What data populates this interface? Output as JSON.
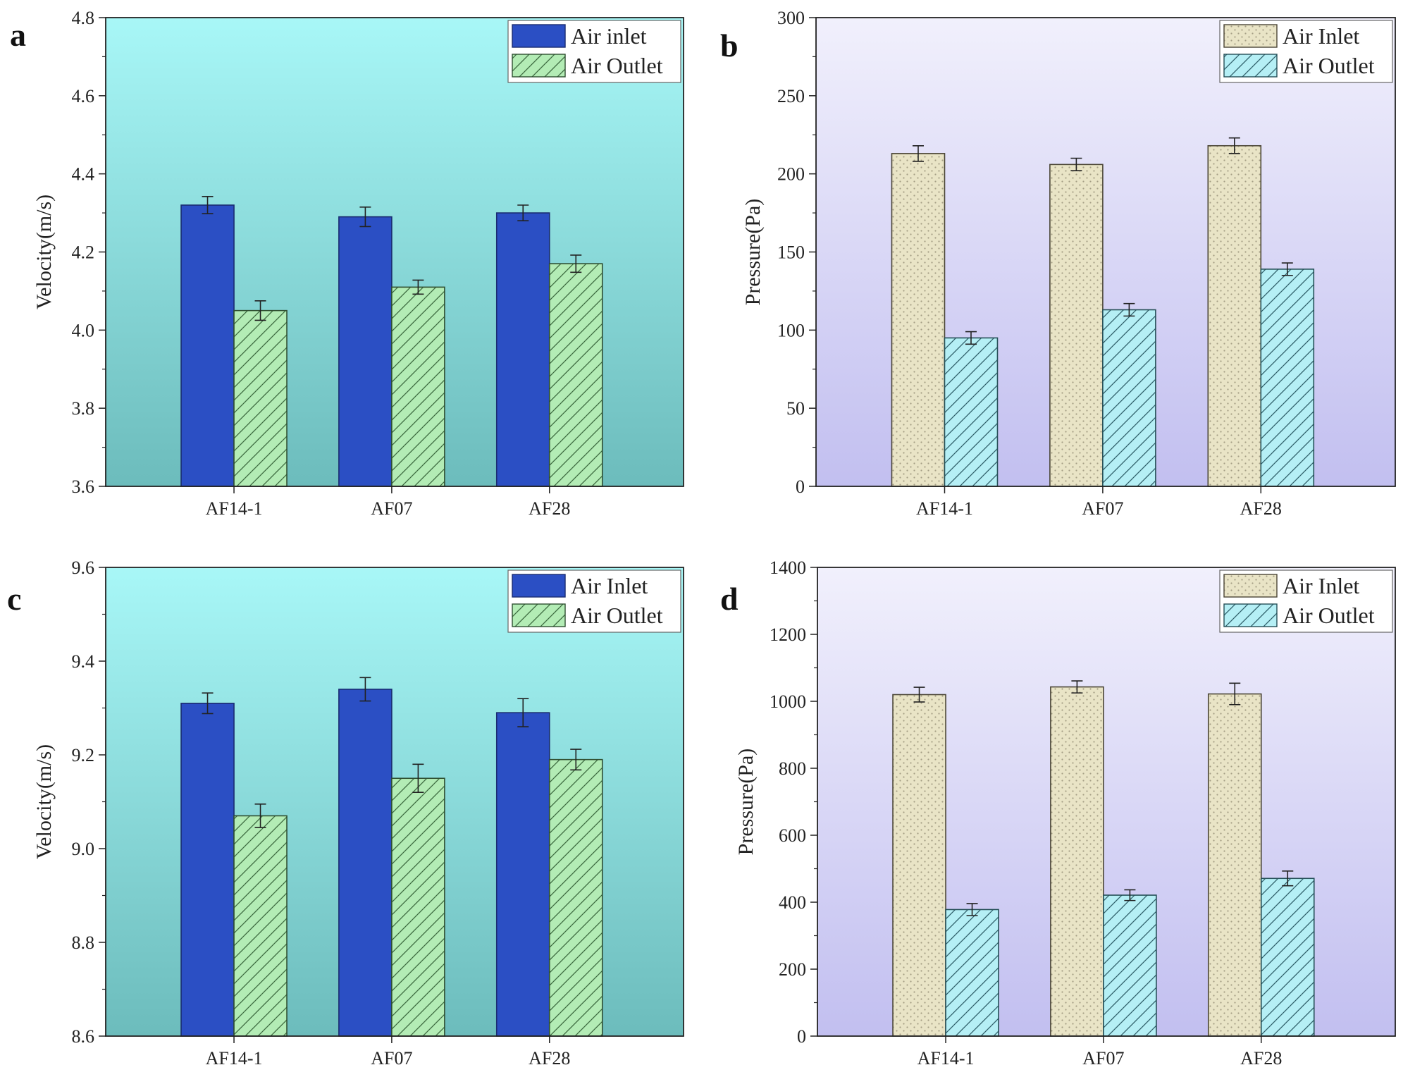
{
  "colors": {
    "velocity_bg_top": "#a8f7f7",
    "velocity_bg_bottom": "#6cbcbc",
    "pressure_bg_top": "#f1f0fc",
    "pressure_bg_bottom": "#c2bff0",
    "air_inlet_velocity": "#2b4fc4",
    "air_outlet_velocity": "#b3ecb5",
    "air_inlet_pressure": "#e9e4c6",
    "air_outlet_pressure": "#b5eff5"
  },
  "chart_data": [
    {
      "panel": "a",
      "type": "bar",
      "title": "",
      "xlabel": "",
      "ylabel": "Velocity(m/s)",
      "ylim": [
        3.6,
        4.8
      ],
      "yticks": [
        3.6,
        3.8,
        4.0,
        4.2,
        4.4,
        4.6,
        4.8
      ],
      "ytick_labels": [
        "3.6",
        "3.8",
        "4.0",
        "4.2",
        "4.4",
        "4.6",
        "4.8"
      ],
      "categories": [
        "AF14-1",
        "AF07",
        "AF28"
      ],
      "legend_position": "top-right",
      "background": "velocity",
      "series": [
        {
          "name": "Air inlet",
          "style": "inlet_velocity",
          "values": [
            4.32,
            4.29,
            4.3
          ],
          "errors": [
            0.022,
            0.025,
            0.02
          ]
        },
        {
          "name": "Air Outlet",
          "style": "outlet_velocity",
          "values": [
            4.05,
            4.11,
            4.17
          ],
          "errors": [
            0.025,
            0.018,
            0.022
          ]
        }
      ]
    },
    {
      "panel": "b",
      "type": "bar",
      "title": "",
      "xlabel": "",
      "ylabel": "Pressure(Pa)",
      "ylim": [
        0,
        300
      ],
      "yticks": [
        0,
        50,
        100,
        150,
        200,
        250,
        300
      ],
      "ytick_labels": [
        "0",
        "50",
        "100",
        "150",
        "200",
        "250",
        "300"
      ],
      "categories": [
        "AF14-1",
        "AF07",
        "AF28"
      ],
      "legend_position": "top-right",
      "background": "pressure",
      "series": [
        {
          "name": "Air Inlet",
          "style": "inlet_pressure",
          "values": [
            213,
            206,
            218
          ],
          "errors": [
            5,
            4,
            5
          ]
        },
        {
          "name": "Air Outlet",
          "style": "outlet_pressure",
          "values": [
            95,
            113,
            139
          ],
          "errors": [
            4,
            4,
            4
          ]
        }
      ]
    },
    {
      "panel": "c",
      "type": "bar",
      "title": "",
      "xlabel": "",
      "ylabel": "Velocity(m/s)",
      "ylim": [
        8.6,
        9.6
      ],
      "yticks": [
        8.6,
        8.8,
        9.0,
        9.2,
        9.4,
        9.6
      ],
      "ytick_labels": [
        "8.6",
        "8.8",
        "9.0",
        "9.2",
        "9.4",
        "9.6"
      ],
      "categories": [
        "AF14-1",
        "AF07",
        "AF28"
      ],
      "legend_position": "top-right",
      "background": "velocity",
      "series": [
        {
          "name": "Air Inlet",
          "style": "inlet_velocity",
          "values": [
            9.31,
            9.34,
            9.29
          ],
          "errors": [
            0.022,
            0.025,
            0.03
          ]
        },
        {
          "name": "Air Outlet",
          "style": "outlet_velocity",
          "values": [
            9.07,
            9.15,
            9.19
          ],
          "errors": [
            0.025,
            0.03,
            0.022
          ]
        }
      ]
    },
    {
      "panel": "d",
      "type": "bar",
      "title": "",
      "xlabel": "",
      "ylabel": "Pressure(Pa)",
      "ylim": [
        0,
        1400
      ],
      "yticks": [
        0,
        200,
        400,
        600,
        800,
        1000,
        1200,
        1400
      ],
      "ytick_labels": [
        "0",
        "200",
        "400",
        "600",
        "800",
        "1000",
        "1200",
        "1400"
      ],
      "categories": [
        "AF14-1",
        "AF07",
        "AF28"
      ],
      "legend_position": "top-right",
      "background": "pressure",
      "series": [
        {
          "name": "Air Inlet",
          "style": "inlet_pressure",
          "values": [
            1020,
            1043,
            1022
          ],
          "errors": [
            22,
            18,
            32
          ]
        },
        {
          "name": "Air Outlet",
          "style": "outlet_pressure",
          "values": [
            378,
            421,
            471
          ],
          "errors": [
            18,
            16,
            22
          ]
        }
      ]
    }
  ]
}
